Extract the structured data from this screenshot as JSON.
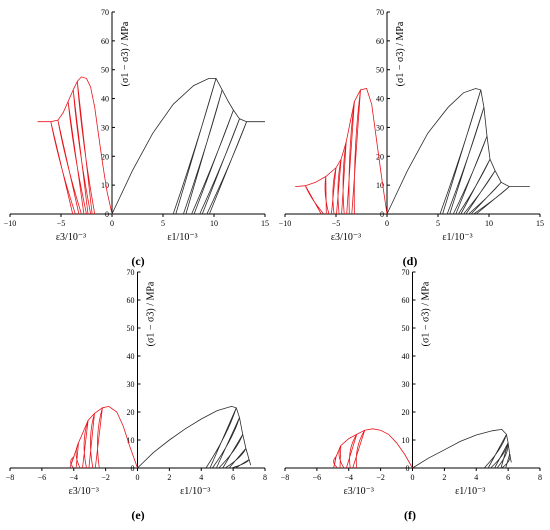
{
  "chart_data": [
    {
      "type": "line",
      "panel_label": "(c)",
      "xlim": [
        -10,
        15
      ],
      "ylim": [
        0,
        70
      ],
      "x_ticks": [
        -10,
        -5,
        0,
        5,
        10,
        15
      ],
      "y_ticks": [
        0,
        10,
        20,
        30,
        40,
        50,
        60,
        70
      ],
      "ylabel": "(σ1 − σ3) / MPa",
      "xlabel_left": "ε3/10⁻³",
      "xlabel_right": "ε1/10⁻³",
      "axial_series": {
        "color": "#2b2b2b",
        "envelope": [
          [
            0,
            0
          ],
          [
            2,
            15
          ],
          [
            4,
            28
          ],
          [
            6,
            38
          ],
          [
            8,
            44.5
          ],
          [
            9.5,
            47
          ],
          [
            10.2,
            47
          ],
          [
            10.8,
            43
          ],
          [
            11.4,
            39
          ],
          [
            11.9,
            36
          ],
          [
            12.5,
            33
          ],
          [
            13.2,
            32
          ],
          [
            15,
            32
          ]
        ],
        "unload_to": [
          6.0,
          7.0,
          7.8,
          8.6,
          9.3
        ]
      },
      "lateral_series": {
        "color": "#e8141b",
        "envelope": [
          [
            -7.3,
            32
          ],
          [
            -6,
            32
          ],
          [
            -5.3,
            32.5
          ],
          [
            -4.8,
            35
          ],
          [
            -4.3,
            39
          ],
          [
            -3.8,
            43
          ],
          [
            -3.4,
            46
          ],
          [
            -3,
            47.5
          ],
          [
            -2.5,
            47
          ],
          [
            -2.1,
            44
          ],
          [
            -1.7,
            37
          ],
          [
            -1.3,
            27
          ],
          [
            -0.9,
            17
          ],
          [
            -0.5,
            8
          ],
          [
            0,
            0
          ]
        ],
        "unload_to": [
          -3.6,
          -3.0,
          -2.5,
          -2.1,
          -1.7
        ]
      }
    },
    {
      "type": "line",
      "panel_label": "(d)",
      "xlim": [
        -10,
        15
      ],
      "ylim": [
        0,
        70
      ],
      "x_ticks": [
        -10,
        -5,
        0,
        5,
        10,
        15
      ],
      "y_ticks": [
        0,
        10,
        20,
        30,
        40,
        50,
        60,
        70
      ],
      "ylabel": "(σ1 − σ3) / MPa",
      "xlabel_left": "ε3/10⁻³",
      "xlabel_right": "ε1/10⁻³",
      "axial_series": {
        "color": "#2b2b2b",
        "envelope": [
          [
            0,
            0
          ],
          [
            2,
            15
          ],
          [
            4,
            28
          ],
          [
            6,
            37
          ],
          [
            7.5,
            42
          ],
          [
            8.7,
            43.5
          ],
          [
            9.2,
            43
          ],
          [
            9.5,
            37
          ],
          [
            9.8,
            27
          ],
          [
            10.1,
            19
          ],
          [
            10.6,
            15
          ],
          [
            11.2,
            11
          ],
          [
            12,
            9.5
          ],
          [
            14,
            9.5
          ]
        ],
        "unload_to": [
          5.2,
          5.9,
          6.5,
          7.0,
          7.5,
          8.0,
          8.5
        ]
      },
      "lateral_series": {
        "color": "#e8141b",
        "envelope": [
          [
            -9,
            9.5
          ],
          [
            -8,
            9.8
          ],
          [
            -7,
            11
          ],
          [
            -6,
            13
          ],
          [
            -5,
            16
          ],
          [
            -4.5,
            19
          ],
          [
            -4,
            25
          ],
          [
            -3.6,
            32
          ],
          [
            -3.2,
            39
          ],
          [
            -2.6,
            43
          ],
          [
            -2.0,
            43.5
          ],
          [
            -1.5,
            38
          ],
          [
            -1.0,
            25
          ],
          [
            -0.5,
            12
          ],
          [
            0,
            0
          ]
        ],
        "unload_to": [
          -6.2,
          -5.7,
          -5.2,
          -4.7,
          -4.2,
          -3.7,
          -3.2
        ]
      }
    },
    {
      "type": "line",
      "panel_label": "(e)",
      "xlim": [
        -8,
        8
      ],
      "ylim": [
        0,
        70
      ],
      "x_ticks": [
        -8,
        -6,
        -4,
        -2,
        0,
        2,
        4,
        6,
        8
      ],
      "y_ticks": [
        0,
        10,
        20,
        30,
        40,
        50,
        60,
        70
      ],
      "ylabel": "(σ1 − σ3) / MPa",
      "xlabel_left": "ε3/10⁻³",
      "xlabel_right": "ε1/10⁻³",
      "axial_series": {
        "color": "#2b2b2b",
        "envelope": [
          [
            0,
            0
          ],
          [
            1,
            5.5
          ],
          [
            2,
            10
          ],
          [
            3,
            14
          ],
          [
            4,
            17.5
          ],
          [
            5,
            20.5
          ],
          [
            5.9,
            22
          ],
          [
            6.2,
            21.5
          ],
          [
            6.4,
            18
          ],
          [
            6.6,
            12
          ],
          [
            6.8,
            7
          ],
          [
            7,
            3
          ],
          [
            7.1,
            1
          ]
        ],
        "unload_to": [
          4.3,
          4.7,
          5.1,
          5.5,
          5.9
        ]
      },
      "lateral_series": {
        "color": "#e8141b",
        "envelope": [
          [
            -4.2,
            1
          ],
          [
            -4.0,
            4
          ],
          [
            -3.7,
            9
          ],
          [
            -3.4,
            13
          ],
          [
            -3.1,
            17
          ],
          [
            -2.7,
            19.5
          ],
          [
            -2.2,
            21.5
          ],
          [
            -1.8,
            22
          ],
          [
            -1.3,
            20
          ],
          [
            -0.9,
            15
          ],
          [
            -0.5,
            8
          ],
          [
            0,
            0
          ]
        ],
        "unload_to": [
          -4.0,
          -3.6,
          -3.2,
          -2.8,
          -2.4
        ]
      }
    },
    {
      "type": "line",
      "panel_label": "(f)",
      "xlim": [
        -8,
        8
      ],
      "ylim": [
        0,
        70
      ],
      "x_ticks": [
        -8,
        -6,
        -4,
        -2,
        0,
        2,
        4,
        6,
        8
      ],
      "y_ticks": [
        0,
        10,
        20,
        30,
        40,
        50,
        60,
        70
      ],
      "ylabel": "(σ1 − σ3) / MPa",
      "xlabel_left": "ε3/10⁻³",
      "xlabel_right": "ε1/10⁻³",
      "axial_series": {
        "color": "#2b2b2b",
        "envelope": [
          [
            0,
            0
          ],
          [
            1,
            3.5
          ],
          [
            2,
            6.5
          ],
          [
            3,
            9.5
          ],
          [
            4,
            11.8
          ],
          [
            5,
            13.3
          ],
          [
            5.6,
            13.8
          ],
          [
            5.9,
            12
          ],
          [
            6.0,
            9
          ],
          [
            6.1,
            5
          ],
          [
            6.2,
            2
          ]
        ],
        "unload_to": [
          4.5,
          4.9,
          5.3,
          5.6
        ]
      },
      "lateral_series": {
        "color": "#e8141b",
        "envelope": [
          [
            -4.9,
            1
          ],
          [
            -4.8,
            4
          ],
          [
            -4.5,
            8
          ],
          [
            -4.0,
            10.5
          ],
          [
            -3.5,
            12
          ],
          [
            -3,
            13.5
          ],
          [
            -2.5,
            14
          ],
          [
            -2,
            13.5
          ],
          [
            -1.5,
            12
          ],
          [
            -1,
            9
          ],
          [
            -0.5,
            5
          ],
          [
            0,
            0
          ]
        ],
        "unload_to": [
          -4.7,
          -4.3,
          -3.9,
          -3.5
        ]
      }
    }
  ]
}
